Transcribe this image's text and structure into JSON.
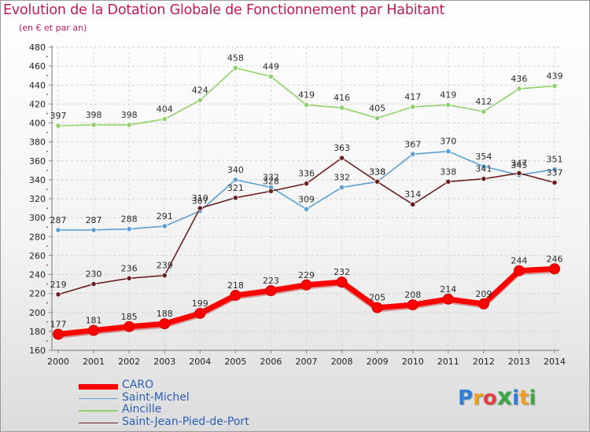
{
  "title": "Evolution de la Dotation Globale de Fonctionnement par Habitant",
  "subtitle": "(en € et par an)",
  "logo": {
    "text": "Proxiti",
    "letters": [
      "P",
      "r",
      "o",
      "x",
      "i",
      "t",
      "i"
    ],
    "colors": [
      "#2e7fd6",
      "#f0a020",
      "#e53e3e",
      "#3aa845",
      "#2e7fd6",
      "#f0a020",
      "#3aa845"
    ]
  },
  "colors": {
    "title": "#c2185b",
    "CARO": "#ff0000",
    "Saint-Michel": "#5a9fd0",
    "Aincille": "#8fd16a",
    "Saint-Jean-Pied-de-Port": "#6b1f1f"
  },
  "chart_data": {
    "type": "line",
    "title": "Evolution de la Dotation Globale de Fonctionnement par Habitant",
    "subtitle": "(en € et par an)",
    "xlabel": "",
    "ylabel": "",
    "ylim": [
      160,
      480
    ],
    "yticks": [
      160,
      180,
      200,
      220,
      240,
      260,
      280,
      300,
      320,
      340,
      360,
      380,
      400,
      420,
      440,
      460,
      480
    ],
    "grid": true,
    "legend_position": "bottom-left",
    "categories": [
      "2000",
      "2001",
      "2002",
      "2003",
      "2004",
      "2005",
      "2006",
      "2007",
      "2008",
      "2009",
      "2010",
      "2011",
      "2012",
      "2013",
      "2014"
    ],
    "series": [
      {
        "name": "CARO",
        "values": [
          177,
          181,
          185,
          188,
          199,
          218,
          223,
          229,
          232,
          205,
          208,
          214,
          209,
          244,
          246
        ]
      },
      {
        "name": "Saint-Michel",
        "values": [
          287,
          287,
          288,
          291,
          307,
          340,
          332,
          309,
          332,
          338,
          367,
          370,
          354,
          345,
          351
        ]
      },
      {
        "name": "Aincille",
        "values": [
          397,
          398,
          398,
          404,
          424,
          458,
          449,
          419,
          416,
          405,
          417,
          419,
          412,
          436,
          439
        ]
      },
      {
        "name": "Saint-Jean-Pied-de-Port",
        "values": [
          219,
          230,
          236,
          239,
          310,
          321,
          328,
          336,
          363,
          338,
          314,
          338,
          341,
          347,
          337
        ]
      }
    ]
  }
}
